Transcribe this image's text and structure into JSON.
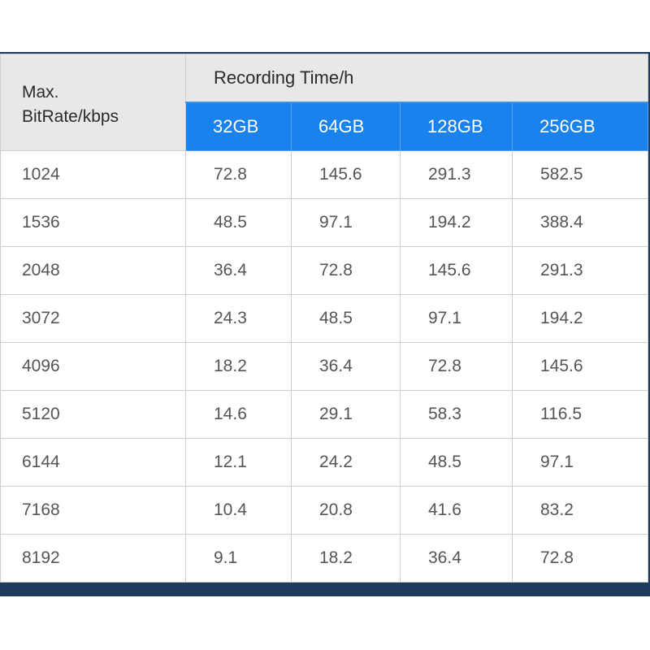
{
  "header": {
    "row_label_line1": "Max.",
    "row_label_line2": "BitRate/kbps",
    "group_label": "Recording Time/h",
    "capacities": [
      "32GB",
      "64GB",
      "128GB",
      "256GB"
    ]
  },
  "rows": [
    {
      "bitrate": "1024",
      "values": [
        "72.8",
        "145.6",
        "291.3",
        "582.5"
      ]
    },
    {
      "bitrate": "1536",
      "values": [
        "48.5",
        "97.1",
        "194.2",
        "388.4"
      ]
    },
    {
      "bitrate": "2048",
      "values": [
        "36.4",
        "72.8",
        "145.6",
        "291.3"
      ]
    },
    {
      "bitrate": "3072",
      "values": [
        "24.3",
        "48.5",
        "97.1",
        "194.2"
      ]
    },
    {
      "bitrate": "4096",
      "values": [
        "18.2",
        "36.4",
        "72.8",
        "145.6"
      ]
    },
    {
      "bitrate": "5120",
      "values": [
        "14.6",
        "29.1",
        "58.3",
        "116.5"
      ]
    },
    {
      "bitrate": "6144",
      "values": [
        "12.1",
        "24.2",
        "48.5",
        "97.1"
      ]
    },
    {
      "bitrate": "7168",
      "values": [
        "10.4",
        "20.8",
        "41.6",
        "83.2"
      ]
    },
    {
      "bitrate": "8192",
      "values": [
        "9.1",
        "18.2",
        "36.4",
        "72.8"
      ]
    }
  ],
  "colors": {
    "header_bg": "#e8e8e8",
    "capacity_bg": "#1a82ec",
    "frame": "#1e3a5c"
  }
}
